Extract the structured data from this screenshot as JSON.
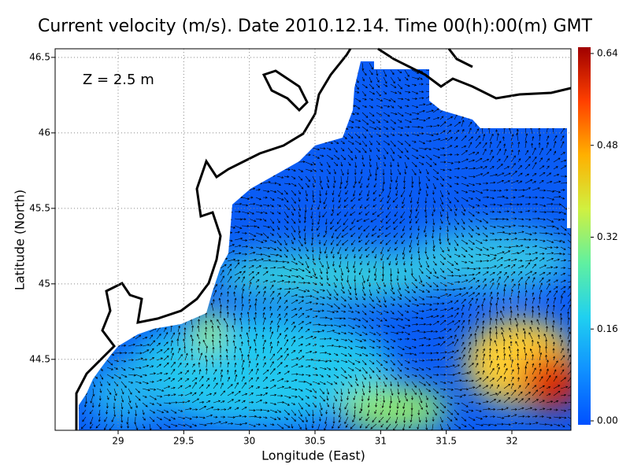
{
  "chart_data": {
    "type": "vector-field-map",
    "title": "Current velocity (m/s). Date 2010.12.14. Time 00(h):00(m) GMT",
    "annotation": "Z = 2.5 m",
    "x_label": "Longitude (East)",
    "y_label": "Latitude (North)",
    "xlim": [
      28.52,
      32.45
    ],
    "ylim": [
      44.03,
      46.557
    ],
    "xticks": [
      29,
      29.5,
      30,
      30.5,
      31,
      31.5,
      32
    ],
    "yticks": [
      44.5,
      45,
      45.5,
      46,
      46.5
    ],
    "grid": true,
    "colorbar": {
      "lim": [
        0,
        0.64
      ],
      "ticks": [
        {
          "value": 0,
          "label": "0.00"
        },
        0.16,
        0.32,
        0.48,
        0.64
      ],
      "colors": [
        "#0050ff",
        "#1090ff",
        "#20d0f0",
        "#60f0a0",
        "#d0f040",
        "#ffb000",
        "#ff4000",
        "#a00000"
      ]
    }
  }
}
